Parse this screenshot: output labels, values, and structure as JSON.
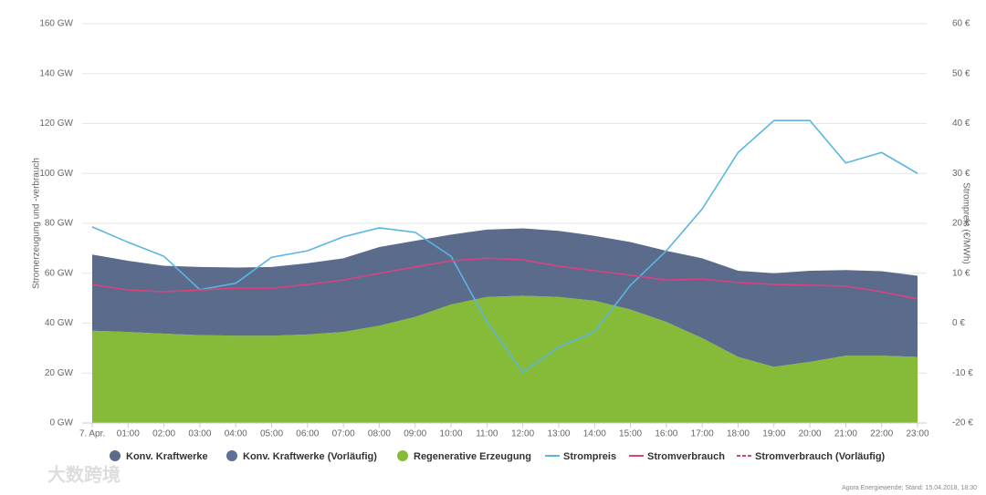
{
  "chart_data": {
    "type": "area-line",
    "ylabel": "Stromerzeugung und -verbrauch",
    "y2label": "Strompreis (€/MWh)",
    "source": "Agora Energiewende; Stand: 15.04.2018, 18:30",
    "watermark": "大数跨境",
    "categories": [
      "7. Apr.",
      "01:00",
      "02:00",
      "03:00",
      "04:00",
      "05:00",
      "06:00",
      "07:00",
      "08:00",
      "09:00",
      "10:00",
      "11:00",
      "12:00",
      "13:00",
      "14:00",
      "15:00",
      "16:00",
      "17:00",
      "18:00",
      "19:00",
      "20:00",
      "21:00",
      "22:00",
      "23:00"
    ],
    "ylim": [
      0,
      160
    ],
    "yticks": [
      {
        "value": 0,
        "label": "0 GW"
      },
      {
        "value": 20,
        "label": "20 GW"
      },
      {
        "value": 40,
        "label": "40 GW"
      },
      {
        "value": 60,
        "label": "60 GW"
      },
      {
        "value": 80,
        "label": "80 GW"
      },
      {
        "value": 100,
        "label": "100 GW"
      },
      {
        "value": 120,
        "label": "120 GW"
      },
      {
        "value": 140,
        "label": "140 GW"
      },
      {
        "value": 160,
        "label": "160 GW"
      }
    ],
    "y2lim": [
      -20,
      60
    ],
    "y2ticks": [
      {
        "value": -20,
        "label": "-20 €"
      },
      {
        "value": -10,
        "label": "-10 €"
      },
      {
        "value": 0,
        "label": "0 €"
      },
      {
        "value": 10,
        "label": "10 €"
      },
      {
        "value": 20,
        "label": "20 €"
      },
      {
        "value": 30,
        "label": "30 €"
      },
      {
        "value": 40,
        "label": "40 €"
      },
      {
        "value": 50,
        "label": "50 €"
      },
      {
        "value": 60,
        "label": "60 €"
      }
    ],
    "grid": true,
    "series": [
      {
        "name": "Konv. Kraftwerke",
        "kind": "area",
        "stack": 1,
        "color": "#5b6b8c",
        "values": [
          30.5,
          28.5,
          27.2,
          27.3,
          27.3,
          27.5,
          28.5,
          29.5,
          31.5,
          30.5,
          28,
          27,
          27,
          26.5,
          26,
          27,
          28.5,
          32,
          34.5,
          37.5,
          36.5,
          34.3,
          33.8,
          32.5
        ]
      },
      {
        "name": "Konv. Kraftwerke (Vorläufig)",
        "kind": "area",
        "stack": 2,
        "color": "#5d7096",
        "values": [
          null,
          null,
          null,
          null,
          null,
          null,
          null,
          null,
          null,
          null,
          null,
          null,
          null,
          null,
          null,
          null,
          null,
          null,
          null,
          null,
          null,
          null,
          null,
          null
        ]
      },
      {
        "name": "Regenerative Erzeugung",
        "kind": "area",
        "stack": 0,
        "color": "#86bb3a",
        "values": [
          37,
          36.5,
          35.8,
          35.2,
          35,
          35,
          35.5,
          36.5,
          39,
          42.5,
          47.5,
          50.5,
          51,
          50.5,
          49,
          45.5,
          40.5,
          34,
          26.5,
          22.5,
          24.5,
          27,
          27,
          26.5
        ]
      },
      {
        "name": "Strompreis",
        "kind": "line",
        "axis": "y2",
        "color": "#5ab5e2",
        "values": [
          19.3,
          16.2,
          13.4,
          6.7,
          8,
          13.2,
          14.5,
          17.3,
          19.1,
          18.2,
          13.4,
          0.3,
          -9.8,
          -4.8,
          -1.7,
          7.6,
          14.5,
          22.9,
          34.2,
          40.6,
          40.6,
          32.1,
          34.2,
          30
        ]
      },
      {
        "name": "Stromverbrauch",
        "kind": "line",
        "color": "#d9447e",
        "values": [
          55.5,
          53.3,
          52.6,
          53.3,
          54,
          54,
          55.5,
          57.3,
          60,
          62.5,
          65,
          66,
          65.4,
          62.8,
          61,
          59.2,
          57.3,
          57.7,
          56.3,
          55.5,
          55.2,
          54.8,
          52.6,
          49.7
        ]
      },
      {
        "name": "Stromverbrauch (Vorläufig)",
        "kind": "line",
        "dashed": true,
        "color": "#d9447e",
        "values": [
          null,
          null,
          null,
          null,
          null,
          null,
          null,
          null,
          null,
          null,
          null,
          null,
          null,
          null,
          null,
          null,
          null,
          null,
          null,
          null,
          null,
          null,
          null,
          null
        ]
      }
    ]
  }
}
